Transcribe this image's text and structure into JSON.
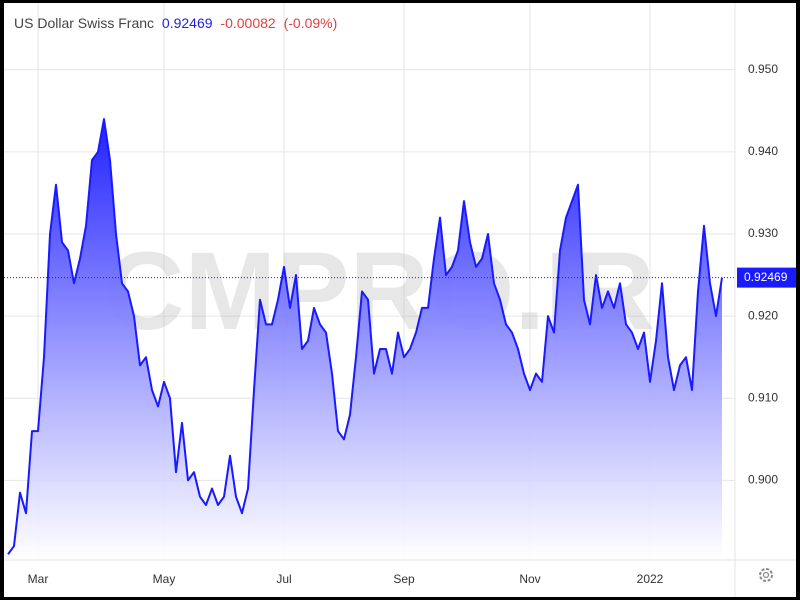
{
  "chart_data": {
    "type": "area",
    "title": "US Dollar Swiss Franc",
    "change": -0.00082,
    "change_percent": "(-0.09%)",
    "watermark": "CMPRO.IR",
    "color": "#1a1aff",
    "categories": [
      null,
      null,
      null,
      null,
      null,
      "Mar",
      null,
      null,
      null,
      null,
      null,
      null,
      null,
      null,
      null,
      null,
      null,
      null,
      null,
      null,
      null,
      null,
      null,
      null,
      null,
      null,
      "May",
      null,
      null,
      null,
      null,
      null,
      null,
      null,
      null,
      null,
      null,
      null,
      null,
      null,
      null,
      null,
      null,
      null,
      null,
      null,
      "Jul",
      null,
      null,
      null,
      null,
      null,
      null,
      null,
      null,
      null,
      null,
      null,
      null,
      null,
      null,
      null,
      null,
      null,
      null,
      null,
      "Sep",
      null,
      null,
      null,
      null,
      null,
      null,
      null,
      null,
      null,
      null,
      null,
      null,
      null,
      null,
      null,
      null,
      null,
      null,
      null,
      null,
      "Nov",
      null,
      null,
      null,
      null,
      null,
      null,
      null,
      null,
      null,
      null,
      null,
      null,
      null,
      null,
      null,
      null,
      null,
      null,
      null,
      "2022",
      null,
      null,
      null,
      null,
      null,
      null,
      null,
      null,
      null,
      null,
      null,
      null
    ],
    "values": [
      0.891,
      0.892,
      0.8985,
      0.896,
      0.906,
      0.906,
      0.915,
      0.93,
      0.936,
      0.929,
      0.928,
      0.924,
      0.927,
      0.931,
      0.939,
      0.94,
      0.944,
      0.939,
      0.93,
      0.924,
      0.923,
      0.92,
      0.914,
      0.915,
      0.911,
      0.909,
      0.912,
      0.91,
      0.901,
      0.907,
      0.9,
      0.901,
      0.898,
      0.897,
      0.899,
      0.897,
      0.898,
      0.903,
      0.898,
      0.896,
      0.899,
      0.911,
      0.922,
      0.919,
      0.919,
      0.922,
      0.926,
      0.921,
      0.925,
      0.916,
      0.917,
      0.921,
      0.919,
      0.918,
      0.913,
      0.906,
      0.905,
      0.908,
      0.915,
      0.923,
      0.922,
      0.913,
      0.916,
      0.916,
      0.913,
      0.918,
      0.915,
      0.916,
      0.918,
      0.921,
      0.921,
      0.927,
      0.932,
      0.925,
      0.926,
      0.928,
      0.934,
      0.929,
      0.926,
      0.927,
      0.93,
      0.924,
      0.922,
      0.919,
      0.918,
      0.916,
      0.913,
      0.911,
      0.913,
      0.912,
      0.92,
      0.918,
      0.928,
      0.932,
      0.934,
      0.936,
      0.922,
      0.919,
      0.925,
      0.921,
      0.923,
      0.921,
      0.924,
      0.919,
      0.918,
      0.916,
      0.918,
      0.912,
      0.917,
      0.924,
      0.915,
      0.911,
      0.914,
      0.915,
      0.911,
      0.923,
      0.931,
      0.924,
      0.92,
      0.92469
    ],
    "ylim": [
      0.8903,
      0.9585
    ],
    "yticks": [
      {
        "value": 0.9,
        "label": "0.900"
      },
      {
        "value": 0.91,
        "label": "0.910"
      },
      {
        "value": 0.92,
        "label": "0.920"
      },
      {
        "value": 0.93,
        "label": "0.930"
      },
      {
        "value": 0.94,
        "label": "0.940"
      },
      {
        "value": 0.95,
        "label": "0.950"
      }
    ],
    "grid": true
  }
}
